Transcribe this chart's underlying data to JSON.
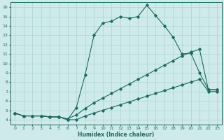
{
  "title": "",
  "xlabel": "Humidex (Indice chaleur)",
  "xlim": [
    -0.5,
    23.5
  ],
  "ylim": [
    3.5,
    16.5
  ],
  "xticks": [
    0,
    1,
    2,
    3,
    4,
    5,
    6,
    7,
    8,
    9,
    10,
    11,
    12,
    13,
    14,
    15,
    16,
    17,
    18,
    19,
    20,
    21,
    22,
    23
  ],
  "yticks": [
    4,
    5,
    6,
    7,
    8,
    9,
    10,
    11,
    12,
    13,
    14,
    15,
    16
  ],
  "bg_color": "#ceeaea",
  "grid_color": "#b0d8d8",
  "line_color": "#1a6b60",
  "line2_x": [
    0,
    1,
    2,
    3,
    4,
    5,
    6,
    7,
    8,
    9,
    10,
    11,
    12,
    13,
    14,
    15,
    16,
    17,
    18,
    19,
    20,
    21,
    22,
    23
  ],
  "line2_y": [
    4.7,
    4.4,
    4.4,
    4.4,
    4.3,
    4.3,
    4.0,
    5.3,
    8.8,
    13.0,
    14.3,
    14.5,
    15.0,
    14.8,
    15.0,
    16.2,
    15.1,
    14.0,
    12.8,
    11.0,
    11.1,
    9.0,
    7.2,
    7.2
  ],
  "line3_x": [
    0,
    1,
    2,
    3,
    4,
    5,
    6,
    7,
    8,
    9,
    10,
    11,
    12,
    13,
    14,
    15,
    16,
    17,
    18,
    19,
    20,
    21,
    22,
    23
  ],
  "line3_y": [
    4.7,
    4.4,
    4.4,
    4.4,
    4.3,
    4.3,
    4.1,
    4.5,
    5.2,
    5.8,
    6.3,
    6.8,
    7.3,
    7.8,
    8.3,
    8.8,
    9.3,
    9.8,
    10.3,
    10.8,
    11.2,
    11.5,
    7.2,
    7.2
  ],
  "line1_x": [
    0,
    1,
    2,
    3,
    4,
    5,
    6,
    7,
    8,
    9,
    10,
    11,
    12,
    13,
    14,
    15,
    16,
    17,
    18,
    19,
    20,
    21,
    22,
    23
  ],
  "line1_y": [
    4.7,
    4.4,
    4.4,
    4.4,
    4.3,
    4.3,
    4.0,
    4.0,
    4.4,
    4.7,
    5.0,
    5.3,
    5.6,
    5.9,
    6.2,
    6.5,
    6.8,
    7.1,
    7.4,
    7.7,
    8.0,
    8.3,
    7.0,
    7.0
  ]
}
